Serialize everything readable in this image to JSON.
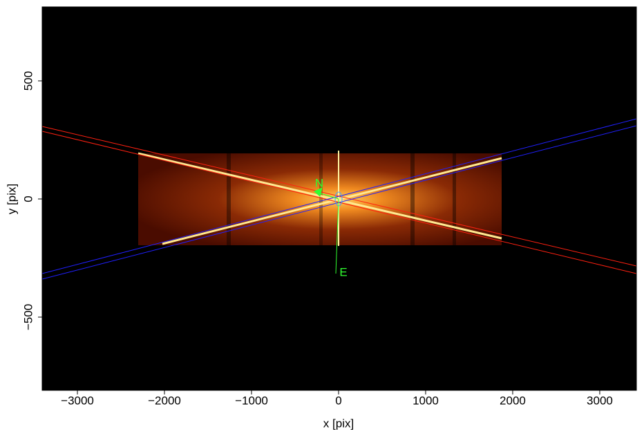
{
  "chart_data": {
    "type": "image",
    "x_label": "x [pix]",
    "y_label": "y [pix]",
    "xlim": [
      -3405,
      3421
    ],
    "ylim": [
      -810,
      813
    ],
    "xticks": [
      {
        "value": -3000,
        "label": "−3000"
      },
      {
        "value": -2000,
        "label": "−2000"
      },
      {
        "value": -1000,
        "label": "−1000"
      },
      0,
      1000,
      2000,
      3000
    ],
    "yticks": [
      {
        "value": -500,
        "label": "−500"
      },
      0,
      500
    ],
    "compass": {
      "north": "N",
      "east": "E"
    }
  }
}
